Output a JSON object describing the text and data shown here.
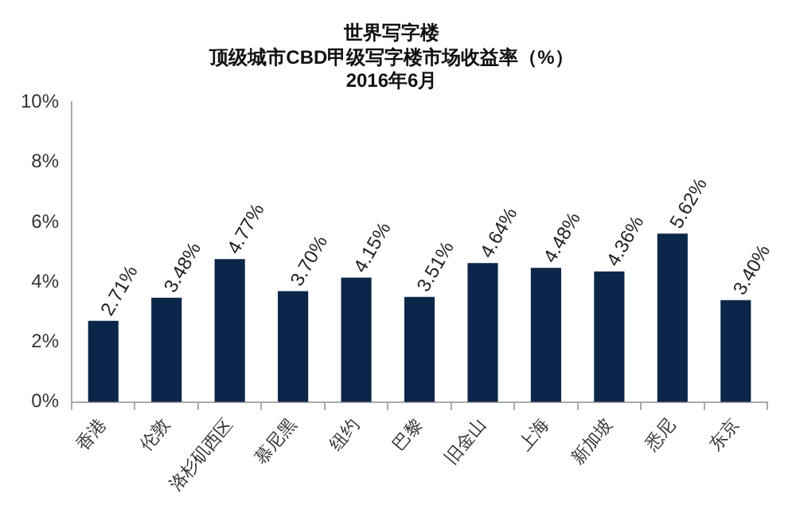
{
  "chart_data": {
    "type": "bar",
    "title": "世界写字楼",
    "subtitle": "顶级城市CBD甲级写字楼市场收益率（%）",
    "annotations": [
      "2016年6月"
    ],
    "categories": [
      "香港",
      "伦敦",
      "洛杉矶西区",
      "慕尼黑",
      "纽约",
      "巴黎",
      "旧金山",
      "上海",
      "新加坡",
      "悉尼",
      "东京"
    ],
    "values": [
      2.71,
      3.48,
      4.77,
      3.7,
      4.15,
      3.51,
      4.64,
      4.48,
      4.36,
      5.62,
      3.4
    ],
    "value_labels": [
      "2.71%",
      "3.48%",
      "4.77%",
      "3.70%",
      "4.15%",
      "3.51%",
      "4.64%",
      "4.48%",
      "4.36%",
      "5.62%",
      "3.40%"
    ],
    "color": "#0b2648",
    "ylim": [
      0,
      10
    ],
    "yticks": [
      {
        "value": 0,
        "label": "0%"
      },
      {
        "value": 2,
        "label": "2%"
      },
      {
        "value": 4,
        "label": "4%"
      },
      {
        "value": 6,
        "label": "6%"
      },
      {
        "value": 8,
        "label": "8%"
      },
      {
        "value": 10,
        "label": "10%"
      }
    ],
    "grid": false,
    "legend": false
  }
}
